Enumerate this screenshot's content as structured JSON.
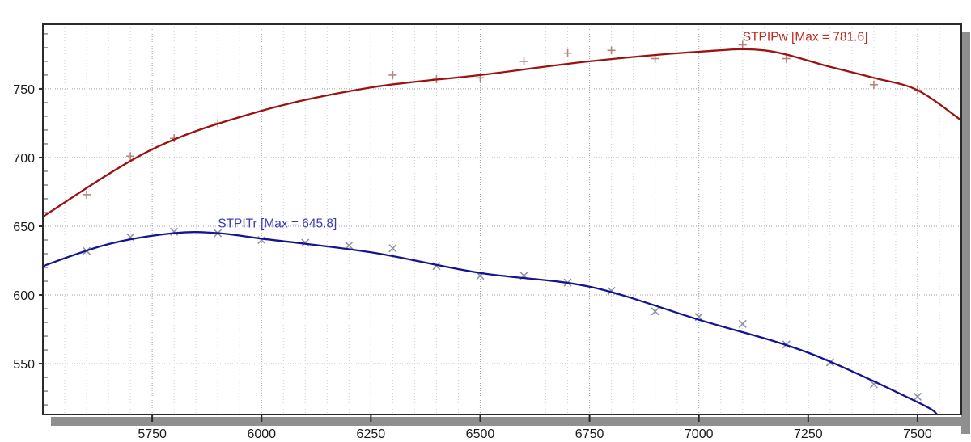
{
  "chart_data": {
    "type": "line",
    "title": "",
    "xlabel": "",
    "ylabel": "",
    "x_range": [
      5500,
      7600
    ],
    "y_range": [
      513,
      797
    ],
    "x_major_ticks": [
      5750,
      6000,
      6250,
      6500,
      6750,
      7000,
      7250,
      7500
    ],
    "x_minor_step": 50,
    "y_major_ticks": [
      550,
      600,
      650,
      700,
      750
    ],
    "y_minor_step": 10,
    "grid": "dotted",
    "legend_position": "inline-labels",
    "colors": {
      "background": "#ffffff",
      "plot_border": "#2a2a2a",
      "shadow": "#8f8f8f",
      "grid_major": "#9aa0ac",
      "grid_minor": "#cdd0d8",
      "tick_label": "#1b1b1b"
    },
    "series": [
      {
        "name": "STPIPw",
        "label": "STPIPw [Max = 781.6]",
        "max": 781.6,
        "color": "#9c1211",
        "label_color": "#c0281c",
        "marker": "plus",
        "marker_color": "#b5847e",
        "label_anchor": [
          7100,
          788
        ],
        "fit_curve": [
          [
            5500,
            657
          ],
          [
            5750,
            706
          ],
          [
            6000,
            734
          ],
          [
            6250,
            751
          ],
          [
            6500,
            760
          ],
          [
            6750,
            770
          ],
          [
            7000,
            777
          ],
          [
            7150,
            778
          ],
          [
            7300,
            766
          ],
          [
            7400,
            758
          ],
          [
            7500,
            749
          ],
          [
            7600,
            727
          ]
        ],
        "points": [
          [
            5600,
            673
          ],
          [
            5700,
            701
          ],
          [
            5800,
            714
          ],
          [
            5900,
            725
          ],
          [
            6300,
            760
          ],
          [
            6400,
            757
          ],
          [
            6500,
            758
          ],
          [
            6600,
            770
          ],
          [
            6700,
            776
          ],
          [
            6800,
            778
          ],
          [
            6900,
            772
          ],
          [
            7100,
            782
          ],
          [
            7200,
            772
          ],
          [
            7400,
            753
          ],
          [
            7500,
            749
          ]
        ]
      },
      {
        "name": "STPITr",
        "label": "STPITr [Max = 645.8]",
        "max": 645.8,
        "color": "#14148f",
        "label_color": "#3b3bb4",
        "marker": "cross",
        "marker_color": "#9093a4",
        "label_anchor": [
          5900,
          652
        ],
        "fit_curve": [
          [
            5500,
            621
          ],
          [
            5650,
            637
          ],
          [
            5800,
            645
          ],
          [
            5900,
            645
          ],
          [
            6000,
            641
          ],
          [
            6250,
            631
          ],
          [
            6500,
            616
          ],
          [
            6750,
            606
          ],
          [
            7000,
            582
          ],
          [
            7250,
            558
          ],
          [
            7500,
            522
          ],
          [
            7545,
            513
          ]
        ],
        "points": [
          [
            5600,
            632
          ],
          [
            5700,
            642
          ],
          [
            5800,
            646
          ],
          [
            5900,
            645
          ],
          [
            6000,
            640
          ],
          [
            6100,
            638
          ],
          [
            6200,
            636
          ],
          [
            6300,
            634
          ],
          [
            6400,
            621
          ],
          [
            6500,
            614
          ],
          [
            6600,
            614
          ],
          [
            6700,
            609
          ],
          [
            6800,
            603
          ],
          [
            6900,
            588
          ],
          [
            7000,
            584
          ],
          [
            7100,
            579
          ],
          [
            7200,
            564
          ],
          [
            7300,
            551
          ],
          [
            7400,
            535
          ],
          [
            7500,
            526
          ]
        ]
      }
    ]
  }
}
